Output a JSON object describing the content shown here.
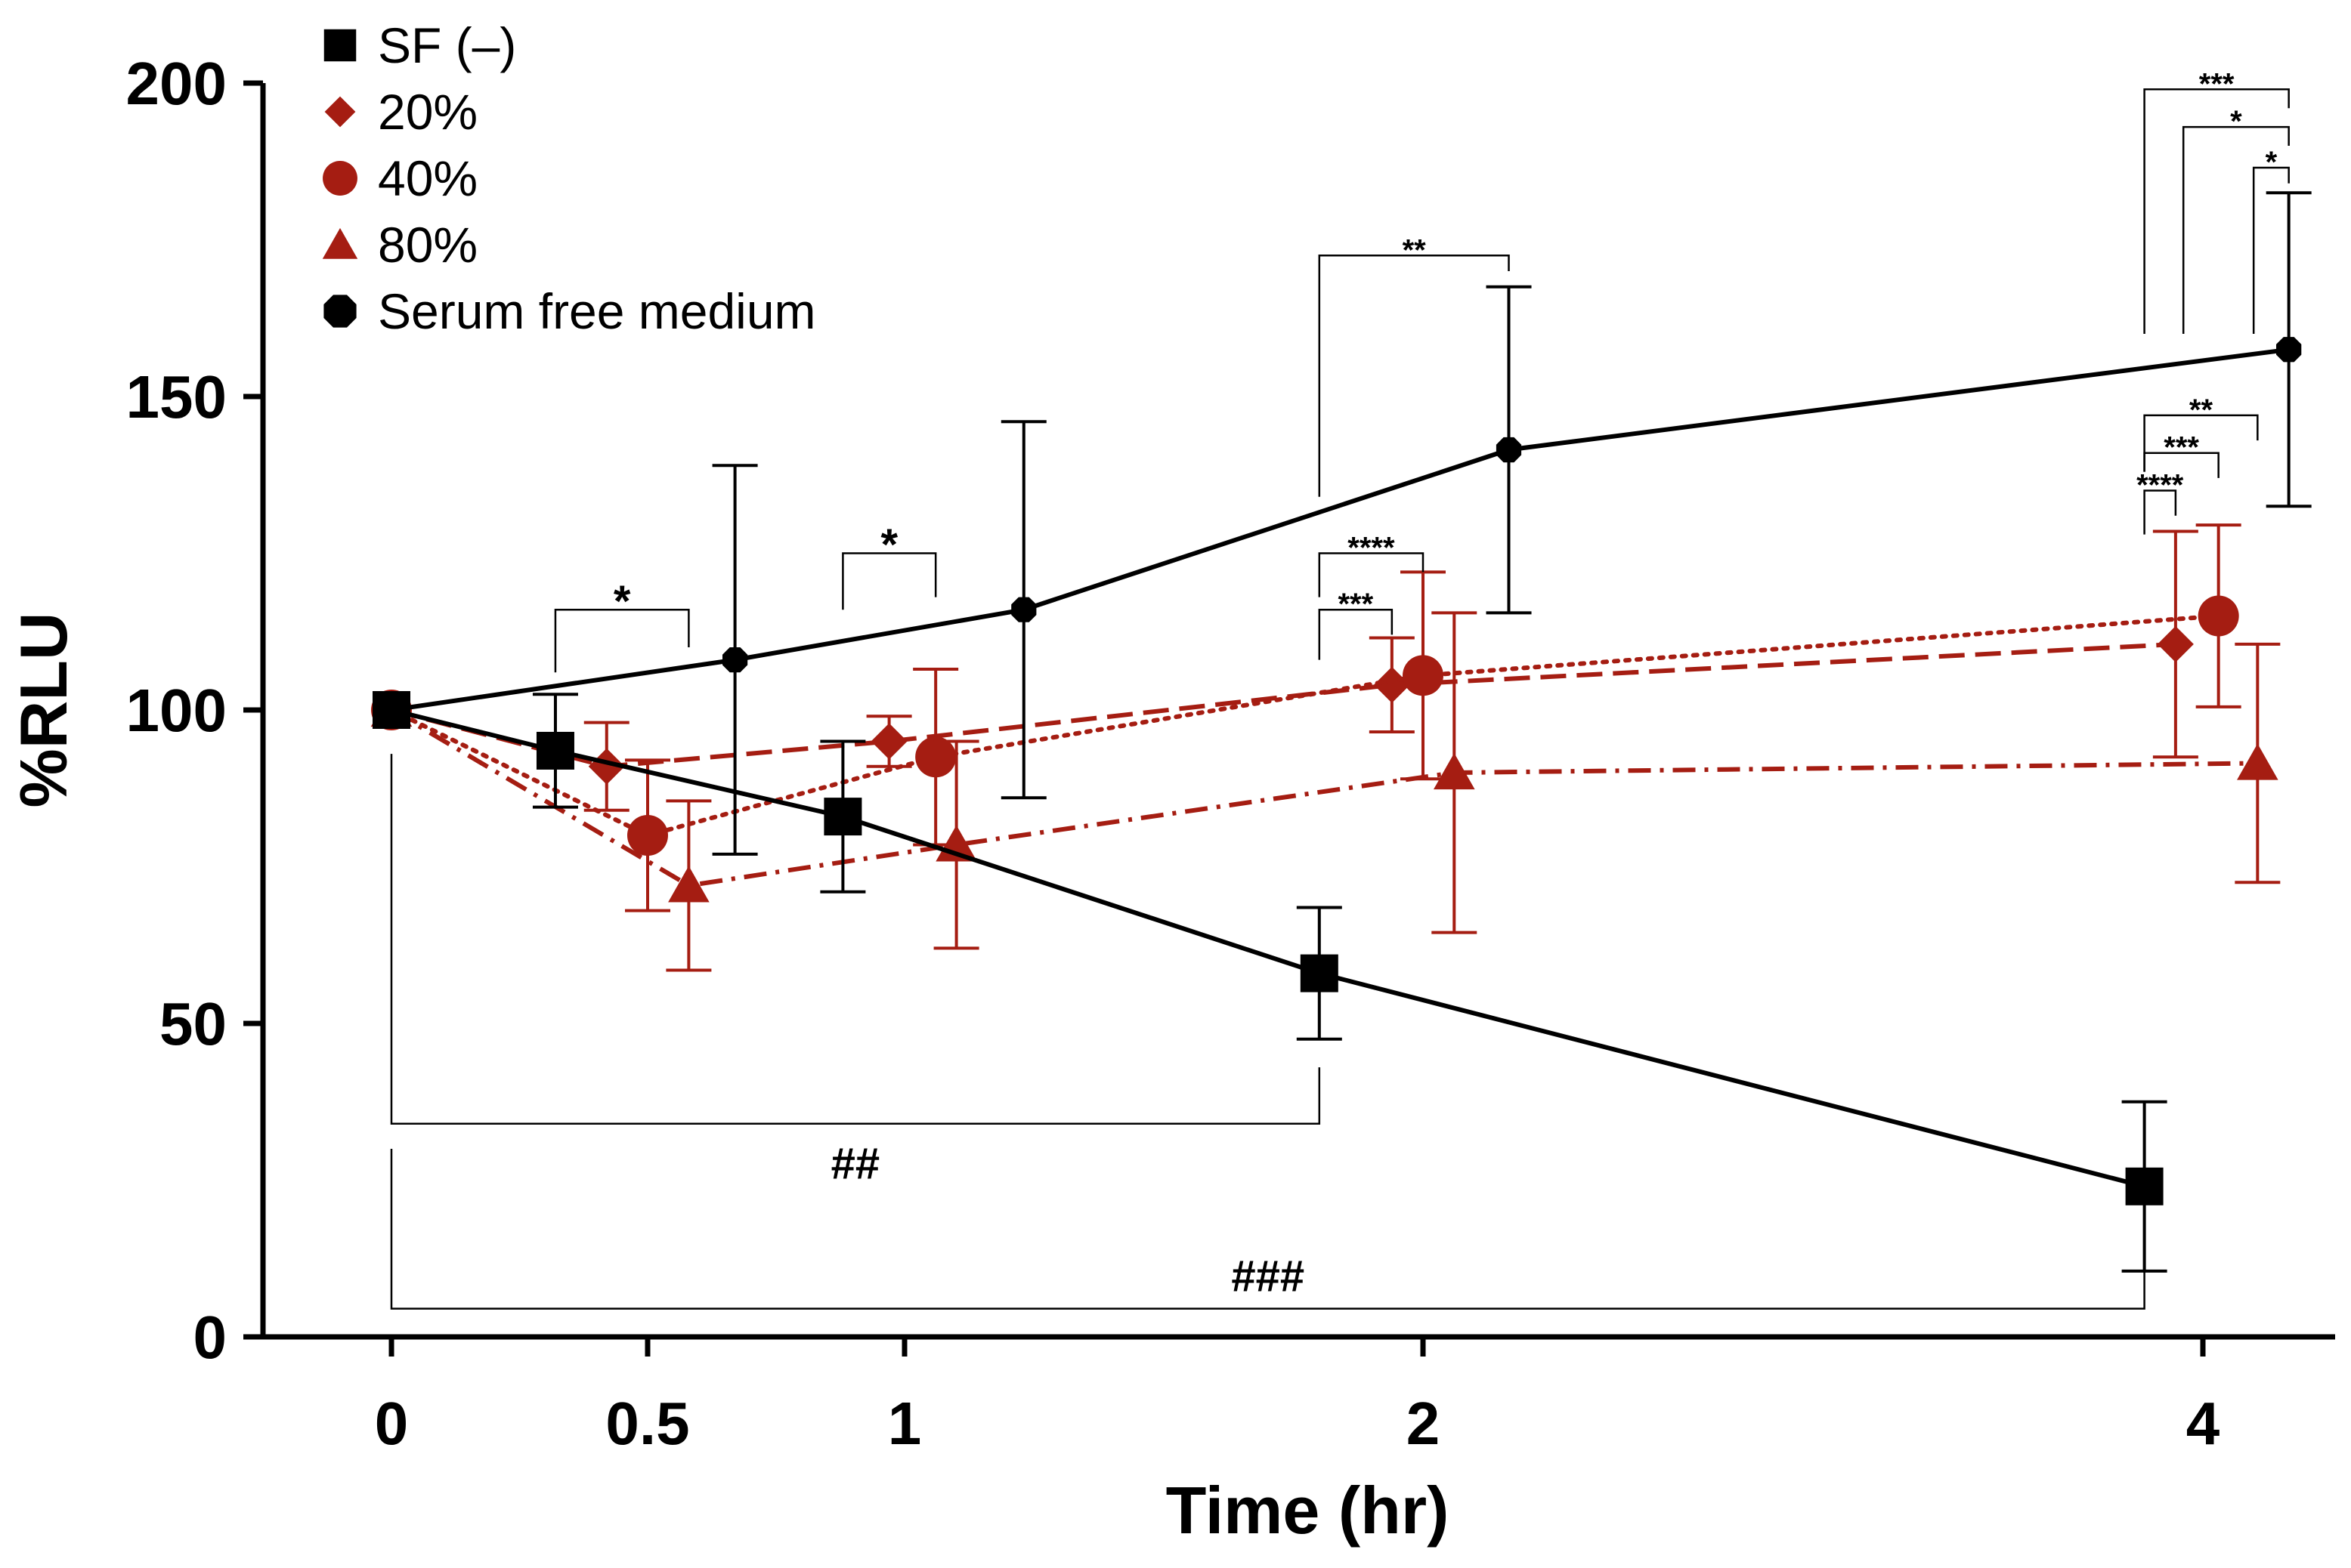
{
  "chart_data": {
    "type": "line",
    "title": "",
    "xlabel": "Time (hr)",
    "ylabel": "%RLU",
    "ylim": [
      0,
      200
    ],
    "yticks": [
      0,
      50,
      100,
      150,
      200
    ],
    "xticks": [
      {
        "value": 0,
        "label": "0"
      },
      {
        "value": 0.5,
        "label": "0.5"
      },
      {
        "value": 1,
        "label": "1"
      },
      {
        "value": 2,
        "label": "2"
      },
      {
        "value": 4,
        "label": "4"
      }
    ],
    "x_scale_note": "x axis is non-linear; ticks evenly spaced except 4",
    "legend_position": "top-left",
    "colors": {
      "black": "#000000",
      "red": "#a51d12"
    },
    "series": [
      {
        "name": "SF (–)",
        "color": "#000000",
        "marker": "square",
        "dash": "solid",
        "points": [
          {
            "x": 0,
            "y": 100,
            "err": 0
          },
          {
            "x": 0.32,
            "y": 93.5,
            "err": 9
          },
          {
            "x": 0.88,
            "y": 83,
            "err": 12
          },
          {
            "x": 1.8,
            "y": 58,
            "err": 10.5
          },
          {
            "x": 3.85,
            "y": 24,
            "err": 13.5
          }
        ]
      },
      {
        "name": "20%",
        "color": "#a51d12",
        "marker": "diamond",
        "dash": "dashed",
        "points": [
          {
            "x": 0,
            "y": 100,
            "err": 0
          },
          {
            "x": 0.42,
            "y": 91,
            "err": 7
          },
          {
            "x": 0.97,
            "y": 95,
            "err": 4
          },
          {
            "x": 1.94,
            "y": 104,
            "err": 7.5
          },
          {
            "x": 3.93,
            "y": 110.5,
            "err": 18
          }
        ]
      },
      {
        "name": "40%",
        "color": "#a51d12",
        "marker": "circle",
        "dash": "dotted",
        "points": [
          {
            "x": 0,
            "y": 100,
            "err": 0
          },
          {
            "x": 0.5,
            "y": 80,
            "err": 12
          },
          {
            "x": 1.06,
            "y": 92.5,
            "err": 14
          },
          {
            "x": 2,
            "y": 105.5,
            "err": 16.5
          },
          {
            "x": 4.04,
            "y": 115,
            "err": 14.5
          }
        ]
      },
      {
        "name": "80%",
        "color": "#a51d12",
        "marker": "triangle",
        "dash": "dashdot",
        "points": [
          {
            "x": 0,
            "y": 100,
            "err": 0
          },
          {
            "x": 0.58,
            "y": 72,
            "err": 13.5
          },
          {
            "x": 1.1,
            "y": 78.5,
            "err": 16.5
          },
          {
            "x": 2.08,
            "y": 90,
            "err": 25.5
          },
          {
            "x": 4.14,
            "y": 91.5,
            "err": 19
          }
        ]
      },
      {
        "name": "Serum free medium",
        "color": "#000000",
        "marker": "octagon",
        "dash": "solid",
        "points": [
          {
            "x": 0,
            "y": 100,
            "err": 0
          },
          {
            "x": 0.67,
            "y": 108,
            "err": 31
          },
          {
            "x": 1.23,
            "y": 116,
            "err": 30
          },
          {
            "x": 2.22,
            "y": 141.5,
            "err": 26
          },
          {
            "x": 4.22,
            "y": 157.5,
            "err": 25
          }
        ]
      }
    ],
    "annotations": [
      {
        "label": "*",
        "x1": 0.32,
        "x2": 0.58,
        "y": 116,
        "drop1": 106,
        "drop2": 110,
        "size": 58
      },
      {
        "label": "*",
        "x1": 0.88,
        "x2": 1.06,
        "y": 125,
        "drop1": 116,
        "drop2": 118,
        "size": 58
      },
      {
        "label": "**",
        "x1": 1.8,
        "x2": 2.22,
        "y": 172.5,
        "drop1": 134,
        "drop2": 170,
        "size": 40
      },
      {
        "label": "****",
        "x1": 1.8,
        "x2": 2,
        "y": 125,
        "drop1": 118,
        "drop2": 122,
        "size": 40
      },
      {
        "label": "***",
        "x1": 1.8,
        "x2": 1.94,
        "y": 116,
        "drop1": 108,
        "drop2": 112,
        "size": 40
      },
      {
        "label": "***",
        "x1": 3.85,
        "x2": 4.22,
        "y": 199,
        "drop1": 160,
        "drop2": 196,
        "size": 40
      },
      {
        "label": "*",
        "x1": 3.95,
        "x2": 4.22,
        "y": 193,
        "drop1": 160,
        "drop2": 190,
        "size": 40
      },
      {
        "label": "*",
        "x1": 4.13,
        "x2": 4.22,
        "y": 186.5,
        "drop1": 160,
        "drop2": 184,
        "size": 40
      },
      {
        "label": "**",
        "x1": 3.85,
        "x2": 4.14,
        "y": 147,
        "drop1": 138,
        "drop2": 143,
        "size": 40
      },
      {
        "label": "***",
        "x1": 3.85,
        "x2": 4.04,
        "y": 141,
        "drop1": 138,
        "drop2": 137,
        "size": 40
      },
      {
        "label": "****",
        "x1": 3.85,
        "x2": 3.93,
        "y": 135,
        "drop1": 128,
        "drop2": 131,
        "size": 40
      },
      {
        "label": "##",
        "x1": 0,
        "x2": 1.8,
        "y": 34,
        "drop1": 93,
        "drop2": 43,
        "size": 58,
        "label_below": true
      },
      {
        "label": "###",
        "x1": 0,
        "x2": 3.85,
        "y": 4.5,
        "drop1": 30,
        "drop2": 11,
        "size": 58,
        "label_above": true
      }
    ]
  }
}
